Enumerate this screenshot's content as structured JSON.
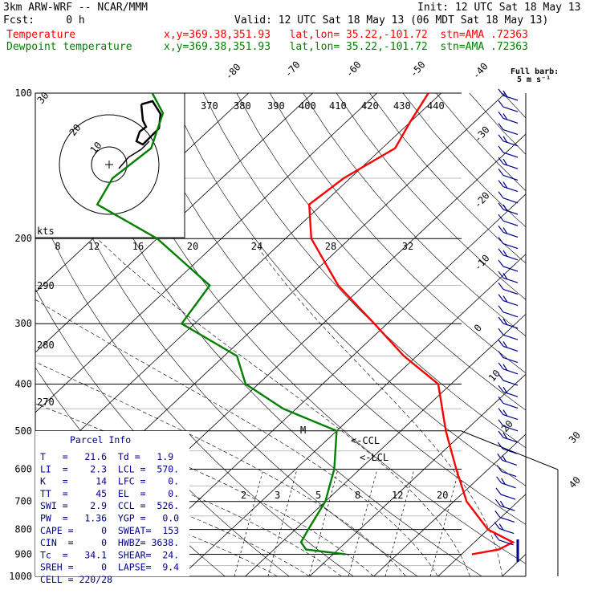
{
  "header": {
    "model": "3km ARW-WRF -- NCAR/MMM",
    "init": "Init: 12 UTC Sat 18 May 13",
    "fcst": "Fcst:     0 h",
    "valid": "Valid: 12 UTC Sat 18 May 13 (06 MDT Sat 18 May 13)",
    "temp_label": "Temperature",
    "dew_label": "Dewpoint temperature",
    "loc": "x,y=369.38,351.93   lat,lon= 35.22,-101.72  stn=AMA .72363"
  },
  "barb_legend": {
    "title": "Full barb:",
    "value": "5 m s⁻¹"
  },
  "colors": {
    "temperature": "#ff0000",
    "dewpoint": "#008000",
    "parcel": "#00008b",
    "barbs": "#00008b",
    "grid": "#000000"
  },
  "chart_data": {
    "type": "line",
    "chart_kind": "skew-T log-p sounding",
    "y_axis": {
      "scale": "log pressure",
      "units": "hPa",
      "ticks": [
        "100",
        "200",
        "300",
        "400",
        "500",
        "600",
        "700",
        "800",
        "900",
        "1000"
      ]
    },
    "isotherm_labels": [
      "-80",
      "-70",
      "-60",
      "-50",
      "-40",
      "-30",
      "-20",
      "-10",
      "0",
      "10",
      "20",
      "30",
      "40"
    ],
    "theta_e_labels": [
      "370",
      "380",
      "390",
      "400",
      "410",
      "420",
      "430",
      "440",
      "270",
      "280",
      "290"
    ],
    "mixing_ratio_labels": [
      "2",
      "3",
      "5",
      "8",
      "12",
      "20"
    ],
    "hodograph": {
      "units_label": "kts",
      "speed_labels": [
        "8",
        "12",
        "16",
        "20",
        "24",
        "28",
        "32"
      ],
      "ring_labels": [
        "10",
        "20",
        "30"
      ]
    },
    "series": [
      {
        "name": "Temperature",
        "points_p_T": [
          [
            900,
            21.6
          ],
          [
            880,
            25
          ],
          [
            850,
            26
          ],
          [
            800,
            20
          ],
          [
            700,
            12
          ],
          [
            600,
            5
          ],
          [
            500,
            -3
          ],
          [
            400,
            -12
          ],
          [
            350,
            -22
          ],
          [
            300,
            -32
          ],
          [
            250,
            -44
          ],
          [
            200,
            -56
          ],
          [
            170,
            -62
          ],
          [
            150,
            -61
          ],
          [
            130,
            -58
          ],
          [
            115,
            -60
          ],
          [
            100,
            -62
          ]
        ]
      },
      {
        "name": "Dewpoint temperature",
        "points_p_T": [
          [
            900,
            1.9
          ],
          [
            880,
            -5
          ],
          [
            850,
            -7
          ],
          [
            800,
            -8
          ],
          [
            700,
            -10
          ],
          [
            600,
            -14
          ],
          [
            500,
            -20
          ],
          [
            450,
            -32
          ],
          [
            400,
            -42
          ],
          [
            350,
            -48
          ],
          [
            300,
            -62
          ],
          [
            250,
            -64
          ],
          [
            200,
            -80
          ],
          [
            170,
            -95
          ],
          [
            150,
            -97
          ],
          [
            130,
            -96
          ],
          [
            110,
            -100
          ],
          [
            100,
            -105
          ]
        ]
      }
    ],
    "markers": [
      "M",
      "<-CCL",
      "<-LCL"
    ]
  },
  "parcel_info": {
    "title": "Parcel Info",
    "rows": [
      "T   =   21.6  Td =   1.9",
      "LI  =    2.3  LCL =  570.",
      "K   =     14  LFC =    0.",
      "TT  =     45  EL  =    0.",
      "SWI =    2.9  CCL =  526.",
      "PW  =   1.36  YGP =   0.0",
      "CAPE =     0  SWEAT=  153",
      "CIN  =     0  HWBZ= 3638.",
      "Tc  =   34.1  SHEAR=  24.",
      "SREH =     0  LAPSE=  9.4",
      "CELL = 220/28"
    ]
  }
}
